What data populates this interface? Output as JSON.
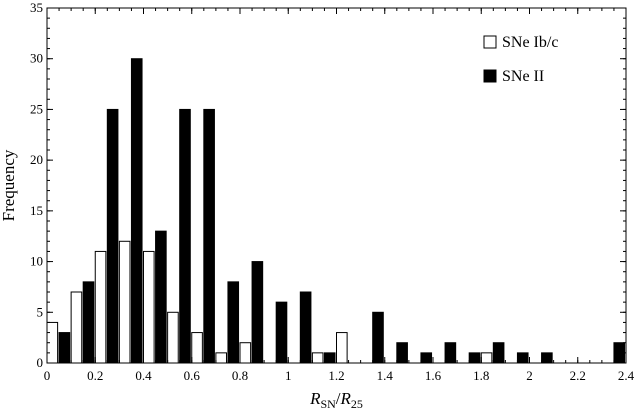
{
  "chart_data": {
    "type": "bar",
    "title": "",
    "xlabel_parts": [
      "R",
      "SN",
      "/",
      "R",
      "25"
    ],
    "ylabel": "Frequency",
    "xlim": [
      0,
      2.4
    ],
    "ylim": [
      0,
      35
    ],
    "xticks": [
      "0",
      "0.2",
      "0.4",
      "0.6",
      "0.8",
      "1",
      "1.2",
      "1.4",
      "1.6",
      "1.8",
      "2",
      "2.2",
      "2.4"
    ],
    "yticks": [
      "0",
      "5",
      "10",
      "15",
      "20",
      "25",
      "30",
      "35"
    ],
    "bin_width": 0.1,
    "bin_starts": [
      0.0,
      0.1,
      0.2,
      0.3,
      0.4,
      0.5,
      0.6,
      0.7,
      0.8,
      0.9,
      1.0,
      1.1,
      1.2,
      1.3,
      1.4,
      1.5,
      1.6,
      1.7,
      1.8,
      1.9,
      2.0,
      2.1,
      2.2,
      2.3
    ],
    "legend_position": "top-right",
    "series": [
      {
        "name": "SNe Ib/c",
        "fill": "#ffffff",
        "stroke": "#000000",
        "values": [
          4,
          7,
          11,
          12,
          11,
          5,
          3,
          1,
          2,
          0,
          0,
          1,
          3,
          0,
          0,
          0,
          0,
          0,
          1,
          0,
          0,
          0,
          0,
          0
        ]
      },
      {
        "name": "SNe II",
        "fill": "#000000",
        "stroke": "#000000",
        "values": [
          3,
          8,
          25,
          30,
          13,
          25,
          25,
          8,
          10,
          6,
          7,
          1,
          0,
          5,
          2,
          1,
          2,
          1,
          2,
          1,
          1,
          0,
          0,
          2
        ]
      }
    ]
  }
}
